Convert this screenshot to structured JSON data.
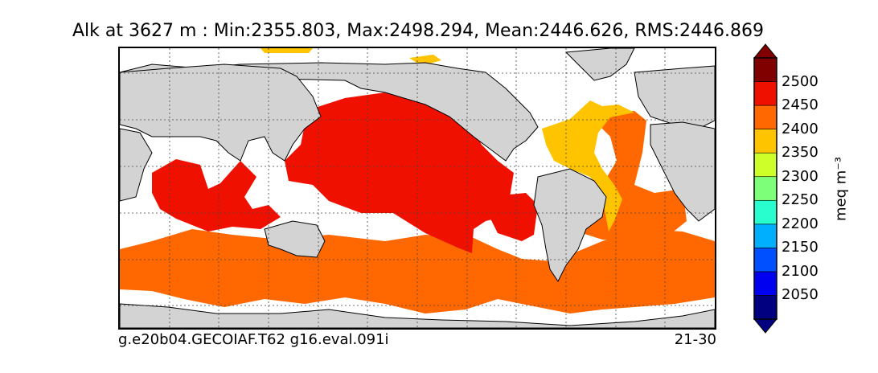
{
  "title": "Alk at 3627 m : Min:2355.803, Max:2498.294, Mean:2446.626, RMS:2446.869",
  "footer": {
    "case_name": "g.e20b04.GECOIAF.T62 g16.eval.091i",
    "years": "21-30"
  },
  "colorbar": {
    "unit_label": "meq m⁻³",
    "ticks": [
      "2050",
      "2100",
      "2150",
      "2200",
      "2250",
      "2300",
      "2350",
      "2400",
      "2450",
      "2500"
    ],
    "colors": [
      "#000080",
      "#0000f0",
      "#0050ff",
      "#00b0ff",
      "#29ffce",
      "#7dff7a",
      "#ceff29",
      "#ffc400",
      "#ff6800",
      "#f01000",
      "#800000"
    ],
    "extend": "both"
  },
  "map": {
    "projection": "cylindrical-equidistant",
    "land_color": "#d3d3d3",
    "missing_color": "#ffffff",
    "gridlines": true,
    "regions": [
      {
        "name": "pacific",
        "level": "2450-2500",
        "color": "#f01000"
      },
      {
        "name": "indian",
        "level": "2450-2500",
        "color": "#f01000"
      },
      {
        "name": "southern-ocean",
        "level": "2400-2450",
        "color": "#ff6800"
      },
      {
        "name": "south-atlantic",
        "level": "2400-2450",
        "color": "#ff6800"
      },
      {
        "name": "north-atlantic",
        "level": "2350-2400",
        "color": "#ffc400"
      }
    ]
  }
}
